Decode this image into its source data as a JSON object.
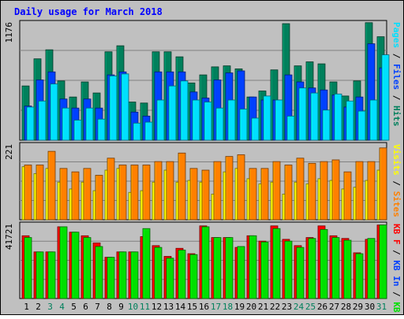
{
  "chart_data": {
    "type": "bar",
    "title": "Daily usage for March 2018",
    "categories": [
      "1",
      "2",
      "3",
      "4",
      "5",
      "6",
      "7",
      "8",
      "9",
      "10",
      "11",
      "12",
      "13",
      "14",
      "15",
      "16",
      "17",
      "18",
      "19",
      "20",
      "21",
      "22",
      "23",
      "24",
      "25",
      "26",
      "27",
      "28",
      "29",
      "30",
      "31"
    ],
    "weekend_days": [
      "3",
      "4",
      "10",
      "11",
      "17",
      "18",
      "24",
      "25",
      "31"
    ],
    "colors": {
      "background": "#c0c0c0",
      "title": "#0000ff",
      "hits": "#00805c",
      "files": "#0040ff",
      "pages": "#00e0ff",
      "visits": "#ffff00",
      "sites": "#ff8000",
      "kb_in": "#00e000",
      "kb_out": "#ff0000",
      "day_label": "#000000",
      "weekend_label": "#00805c"
    },
    "panels": [
      {
        "id": "top",
        "max_label": "1176",
        "ymax": 1176,
        "legend": [
          {
            "text": "Pages",
            "color": "#00e0ff"
          },
          {
            "text": " / ",
            "color": "#000000"
          },
          {
            "text": "Files",
            "color": "#0040ff"
          },
          {
            "text": " / ",
            "color": "#000000"
          },
          {
            "text": "Hits",
            "color": "#00805c"
          }
        ],
        "series": [
          {
            "name": "Hits",
            "color": "#00805c",
            "values": [
              540,
              810,
              900,
              590,
              430,
              580,
              470,
              880,
              940,
              380,
              370,
              880,
              880,
              830,
              570,
              650,
              730,
              740,
              710,
              430,
              490,
              700,
              1160,
              740,
              780,
              760,
              580,
              440,
              590,
              1170,
              1030
            ]
          },
          {
            "name": "Files",
            "color": "#0040ff",
            "values": [
              340,
              600,
              680,
              410,
              320,
              410,
              320,
              650,
              680,
              280,
              240,
              680,
              680,
              680,
              480,
              420,
              600,
              670,
              690,
              430,
              400,
              400,
              650,
              580,
              520,
              500,
              450,
              330,
              430,
              960,
              720
            ]
          },
          {
            "name": "Pages",
            "color": "#00e0ff",
            "values": [
              330,
              390,
              560,
              320,
              200,
              320,
              210,
              640,
              660,
              170,
              180,
              400,
              540,
              590,
              400,
              380,
              320,
              400,
              310,
              220,
              440,
              400,
              240,
              520,
              470,
              300,
              460,
              390,
              290,
              400,
              850
            ]
          }
        ]
      },
      {
        "id": "middle",
        "max_label": "221",
        "ymax": 221,
        "legend": [
          {
            "text": "Visits",
            "color": "#ffff00"
          },
          {
            "text": " / ",
            "color": "#000000"
          },
          {
            "text": "Sites",
            "color": "#ff8000"
          }
        ],
        "series": [
          {
            "name": "Visits",
            "color": "#ffff00",
            "values": [
              155,
              135,
              150,
              110,
              90,
              110,
              85,
              145,
              150,
              80,
              85,
              110,
              145,
              110,
              115,
              110,
              75,
              140,
              150,
              120,
              105,
              110,
              75,
              110,
              105,
              120,
              115,
              90,
              95,
              115,
              145
            ]
          },
          {
            "name": "Sites",
            "color": "#ff8000",
            "values": [
              160,
              160,
              200,
              150,
              140,
              150,
              130,
              180,
              160,
              160,
              160,
              170,
              170,
              195,
              150,
              145,
              170,
              185,
              190,
              150,
              150,
              170,
              160,
              180,
              165,
              170,
              175,
              140,
              170,
              170,
              210
            ]
          }
        ]
      },
      {
        "id": "bottom",
        "max_label": "41721",
        "ymax": 41721,
        "legend": [
          {
            "text": "KB F",
            "color": "#ff0000"
          },
          {
            "text": " / ",
            "color": "#000000"
          },
          {
            "text": "KB In",
            "color": "#0040ff"
          },
          {
            "text": " / ",
            "color": "#000000"
          },
          {
            "text": "KB Out",
            "color": "#00e000"
          }
        ],
        "series": [
          {
            "name": "KB F",
            "color": "#ff0000",
            "values": [
              35000,
              26000,
              26000,
              40000,
              37000,
              35000,
              31000,
              23000,
              26000,
              26000,
              34500,
              29500,
              23500,
              28000,
              25000,
              40500,
              34000,
              34000,
              28500,
              35000,
              32000,
              40500,
              33000,
              29500,
              34000,
              40500,
              35000,
              33500,
              25500,
              33000,
              41000
            ]
          },
          {
            "name": "KB Out",
            "color": "#00e000",
            "values": [
              34000,
              26000,
              26000,
              40000,
              37000,
              34000,
              29000,
              23000,
              26000,
              26000,
              39000,
              28500,
              22500,
              27000,
              24500,
              40000,
              34000,
              34000,
              29000,
              35000,
              31500,
              39000,
              32000,
              28500,
              33500,
              38500,
              34000,
              32500,
              25000,
              33500,
              41000
            ]
          }
        ]
      }
    ]
  }
}
